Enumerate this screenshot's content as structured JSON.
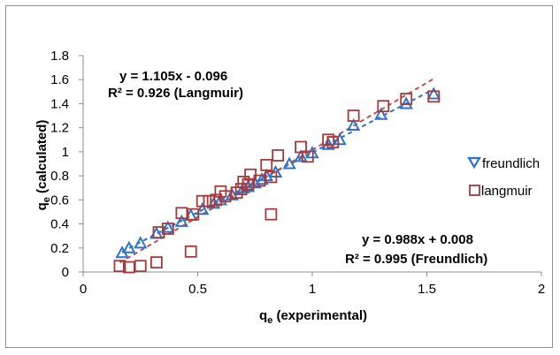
{
  "chart_data": {
    "type": "scatter",
    "xlabel": "qe (experimental)",
    "xlabel_parts": {
      "main": "q",
      "sub": "e",
      "rest": " (experimental)"
    },
    "ylabel": "qe (calculated)",
    "ylabel_parts": {
      "main": "q",
      "sub": "e",
      "rest": " (calculated)"
    },
    "xlim": [
      0,
      2
    ],
    "ylim": [
      0,
      1.8
    ],
    "x_ticks": [
      "0",
      "0.5",
      "1",
      "1.5",
      "2"
    ],
    "y_ticks": [
      "0",
      "0.2",
      "0.4",
      "0.6",
      "0.8",
      "1",
      "1.2",
      "1.4",
      "1.6",
      "1.8"
    ],
    "grid": false,
    "legend": "right",
    "series": [
      {
        "name": "freundlich",
        "marker": "triangle",
        "color": "#2f73c9",
        "trend_color": "#2f73c9",
        "equation": "y = 0.988x + 0.008",
        "r2": "R² = 0.995 (Freundlich)",
        "x": [
          0.17,
          0.2,
          0.25,
          0.32,
          0.37,
          0.43,
          0.47,
          0.52,
          0.57,
          0.6,
          0.65,
          0.7,
          0.72,
          0.75,
          0.78,
          0.8,
          0.84,
          0.9,
          0.95,
          1.0,
          1.07,
          1.12,
          1.18,
          1.3,
          1.41,
          1.53
        ],
        "y": [
          0.16,
          0.2,
          0.24,
          0.32,
          0.37,
          0.42,
          0.47,
          0.52,
          0.57,
          0.6,
          0.64,
          0.7,
          0.71,
          0.74,
          0.77,
          0.8,
          0.83,
          0.9,
          0.96,
          0.99,
          1.06,
          1.1,
          1.22,
          1.31,
          1.4,
          1.48
        ]
      },
      {
        "name": "langmuir",
        "marker": "square",
        "color": "#a63a3a",
        "trend_color": "#c0504d",
        "equation": "y = 1.105x - 0.096",
        "r2": "R² = 0.926 (Langmuir)",
        "x": [
          0.16,
          0.2,
          0.25,
          0.32,
          0.33,
          0.37,
          0.43,
          0.47,
          0.48,
          0.52,
          0.55,
          0.58,
          0.6,
          0.62,
          0.67,
          0.69,
          0.7,
          0.72,
          0.73,
          0.77,
          0.8,
          0.82,
          0.82,
          0.85,
          0.95,
          0.98,
          1.07,
          1.09,
          1.18,
          1.31,
          1.41,
          1.53
        ],
        "y": [
          0.05,
          0.04,
          0.05,
          0.08,
          0.33,
          0.36,
          0.49,
          0.17,
          0.48,
          0.59,
          0.59,
          0.6,
          0.67,
          0.63,
          0.66,
          0.69,
          0.75,
          0.73,
          0.81,
          0.76,
          0.89,
          0.79,
          0.48,
          0.97,
          1.04,
          0.96,
          1.1,
          1.08,
          1.3,
          1.38,
          1.44,
          1.46
        ]
      }
    ]
  }
}
